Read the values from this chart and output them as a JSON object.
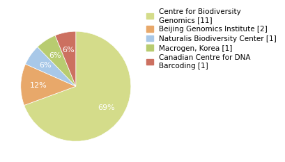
{
  "labels": [
    "Centre for Biodiversity\nGenomics [11]",
    "Beijing Genomics Institute [2]",
    "Naturalis Biodiversity Center [1]",
    "Macrogen, Korea [1]",
    "Canadian Centre for DNA\nBarcoding [1]"
  ],
  "values": [
    68,
    12,
    6,
    6,
    6
  ],
  "colors": [
    "#d4dc8a",
    "#e8a86a",
    "#a8c8e8",
    "#b8cc70",
    "#cc7060"
  ],
  "startangle": 90,
  "text_color": "white",
  "legend_fontsize": 7.5,
  "pct_fontsize": 8
}
